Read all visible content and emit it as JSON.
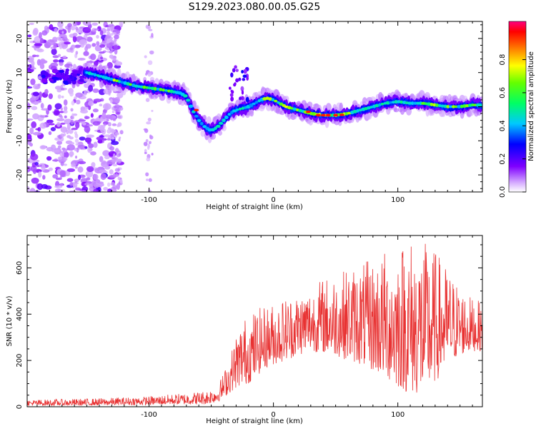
{
  "title": "S129.2023.080.00.05.G25",
  "chart_data": [
    {
      "type": "heatmap",
      "xlabel": "Height of straight line (km)",
      "ylabel": "Frequency (Hz)",
      "xlim": [
        -198,
        168
      ],
      "ylim": [
        -25,
        25
      ],
      "xticks": [
        -100,
        0,
        100
      ],
      "yticks": [
        -20,
        -10,
        0,
        10,
        20
      ],
      "colorbar": {
        "label": "Normalized spectral amplitude",
        "range": [
          0,
          1
        ],
        "ticks": [
          0.0,
          0.2,
          0.4,
          0.6,
          0.8
        ],
        "colormap": [
          "#ffffff",
          "#7f00ff",
          "#0000ff",
          "#00ffff",
          "#00ff00",
          "#ffff00",
          "#ff0000",
          "#ff0080"
        ]
      },
      "ridge": {
        "description_points_x": [
          -150,
          -130,
          -110,
          -90,
          -75,
          -70,
          -65,
          -60,
          -55,
          -50,
          -45,
          -40,
          -35,
          -30,
          -25,
          -20,
          -15,
          -10,
          -5,
          0,
          10,
          20,
          30,
          40,
          50,
          60,
          70,
          80,
          90,
          100,
          110,
          120,
          130,
          140,
          150,
          160,
          168
        ],
        "frequency_hz": [
          10,
          8,
          6,
          5,
          4,
          3,
          -1,
          -4,
          -6,
          -7,
          -6,
          -4,
          -2,
          -1,
          -0.5,
          0,
          1,
          2,
          2.5,
          2,
          0,
          -1,
          -2,
          -2.5,
          -2.5,
          -2,
          -1,
          0,
          1,
          1.5,
          1,
          1,
          0.5,
          0,
          0,
          0.5,
          0.5
        ]
      },
      "grid": false
    },
    {
      "type": "line",
      "xlabel": "Height of straight line (km)",
      "ylabel": "SNR (10 * v/v)",
      "xlim": [
        -198,
        168
      ],
      "ylim": [
        0,
        740
      ],
      "xticks": [
        -100,
        0,
        100
      ],
      "yticks": [
        0,
        200,
        400,
        600
      ],
      "color": "#e83232",
      "envelope": {
        "x": [
          -198,
          -150,
          -100,
          -70,
          -55,
          -45,
          -40,
          -35,
          -30,
          -25,
          -20,
          -15,
          -10,
          -5,
          0,
          10,
          20,
          30,
          40,
          50,
          60,
          70,
          80,
          90,
          100,
          110,
          120,
          130,
          140,
          150,
          160,
          168
        ],
        "low": [
          5,
          5,
          8,
          10,
          10,
          20,
          40,
          60,
          80,
          90,
          100,
          120,
          150,
          170,
          180,
          200,
          220,
          240,
          230,
          220,
          200,
          180,
          150,
          120,
          80,
          50,
          50,
          100,
          180,
          220,
          240,
          240
        ],
        "high": [
          30,
          35,
          45,
          60,
          70,
          90,
          150,
          220,
          320,
          380,
          400,
          420,
          430,
          440,
          450,
          480,
          500,
          520,
          560,
          580,
          600,
          620,
          640,
          680,
          720,
          740,
          720,
          680,
          600,
          520,
          470,
          450
        ]
      },
      "grid": false
    }
  ]
}
